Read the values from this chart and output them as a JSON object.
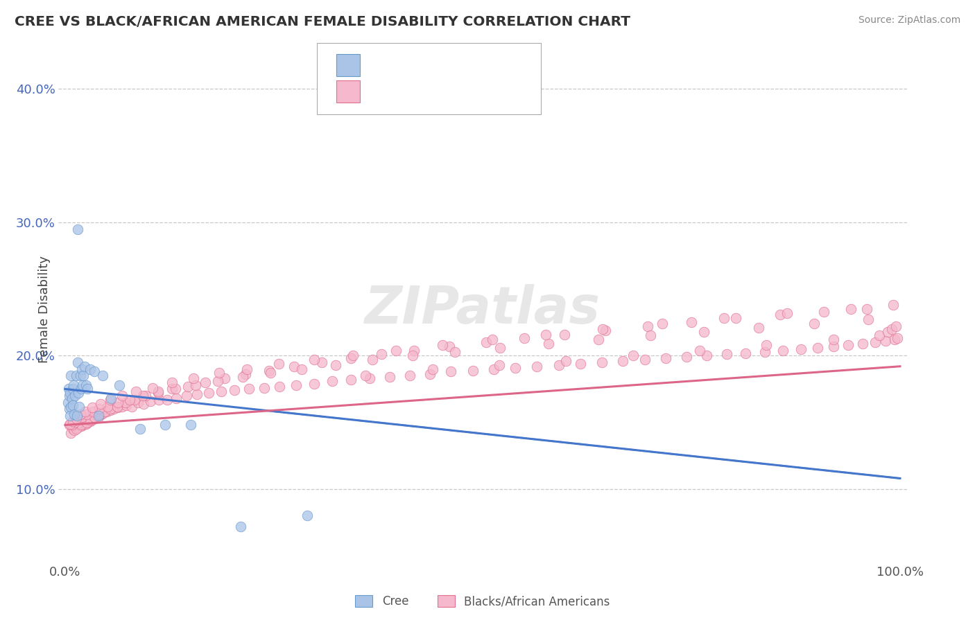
{
  "title": "CREE VS BLACK/AFRICAN AMERICAN FEMALE DISABILITY CORRELATION CHART",
  "source": "Source: ZipAtlas.com",
  "ylabel": "Female Disability",
  "watermark": "ZIPatlas",
  "cree_color": "#aac4e8",
  "cree_edge_color": "#6699cc",
  "black_color": "#f5b8cc",
  "black_edge_color": "#e07090",
  "cree_line_color": "#4477cc",
  "black_line_color": "#dd6688",
  "ytick_color": "#4466bb",
  "background_color": "#ffffff",
  "grid_color": "#bbbbbb",
  "legend_text_color": "#333333",
  "legend_num_color": "#4466bb",
  "xlim": [
    -0.008,
    1.008
  ],
  "ylim": [
    0.045,
    0.425
  ],
  "yticks": [
    0.1,
    0.2,
    0.3,
    0.4
  ],
  "yticklabels": [
    "10.0%",
    "20.0%",
    "30.0%",
    "40.0%"
  ],
  "cree_x": [
    0.003,
    0.004,
    0.005,
    0.005,
    0.006,
    0.006,
    0.007,
    0.007,
    0.008,
    0.009,
    0.009,
    0.01,
    0.011,
    0.012,
    0.013,
    0.014,
    0.015,
    0.016,
    0.017,
    0.018,
    0.019,
    0.02,
    0.021,
    0.022,
    0.023,
    0.025,
    0.027,
    0.03,
    0.035,
    0.04,
    0.045,
    0.055,
    0.065,
    0.09,
    0.12,
    0.15,
    0.21,
    0.29,
    0.015
  ],
  "cree_y": [
    0.165,
    0.175,
    0.16,
    0.17,
    0.155,
    0.172,
    0.162,
    0.185,
    0.168,
    0.163,
    0.175,
    0.178,
    0.156,
    0.17,
    0.185,
    0.155,
    0.195,
    0.172,
    0.162,
    0.185,
    0.175,
    0.19,
    0.178,
    0.185,
    0.192,
    0.178,
    0.175,
    0.19,
    0.188,
    0.155,
    0.185,
    0.168,
    0.178,
    0.145,
    0.148,
    0.148,
    0.072,
    0.08,
    0.295
  ],
  "black_x": [
    0.005,
    0.007,
    0.009,
    0.01,
    0.011,
    0.012,
    0.014,
    0.015,
    0.016,
    0.017,
    0.018,
    0.019,
    0.02,
    0.021,
    0.022,
    0.024,
    0.025,
    0.027,
    0.028,
    0.03,
    0.032,
    0.034,
    0.036,
    0.038,
    0.04,
    0.043,
    0.046,
    0.05,
    0.054,
    0.058,
    0.063,
    0.068,
    0.073,
    0.08,
    0.087,
    0.094,
    0.102,
    0.112,
    0.122,
    0.133,
    0.145,
    0.158,
    0.172,
    0.187,
    0.203,
    0.22,
    0.238,
    0.257,
    0.277,
    0.298,
    0.32,
    0.342,
    0.365,
    0.389,
    0.413,
    0.437,
    0.462,
    0.488,
    0.513,
    0.539,
    0.565,
    0.591,
    0.617,
    0.643,
    0.668,
    0.694,
    0.719,
    0.744,
    0.768,
    0.792,
    0.815,
    0.838,
    0.86,
    0.881,
    0.901,
    0.92,
    0.938,
    0.955,
    0.97,
    0.983,
    0.993,
    0.997,
    0.01,
    0.013,
    0.016,
    0.019,
    0.022,
    0.026,
    0.03,
    0.035,
    0.041,
    0.047,
    0.054,
    0.062,
    0.072,
    0.083,
    0.096,
    0.111,
    0.128,
    0.147,
    0.168,
    0.191,
    0.216,
    0.244,
    0.274,
    0.307,
    0.342,
    0.379,
    0.418,
    0.46,
    0.504,
    0.55,
    0.598,
    0.647,
    0.698,
    0.75,
    0.803,
    0.856,
    0.909,
    0.96,
    0.008,
    0.011,
    0.015,
    0.02,
    0.026,
    0.033,
    0.041,
    0.051,
    0.063,
    0.077,
    0.093,
    0.111,
    0.132,
    0.156,
    0.183,
    0.213,
    0.246,
    0.283,
    0.324,
    0.368,
    0.416,
    0.467,
    0.521,
    0.579,
    0.639,
    0.701,
    0.765,
    0.831,
    0.897,
    0.962,
    0.006,
    0.009,
    0.013,
    0.018,
    0.024,
    0.032,
    0.042,
    0.054,
    0.068,
    0.085,
    0.105,
    0.128,
    0.154,
    0.184,
    0.218,
    0.256,
    0.298,
    0.345,
    0.396,
    0.452,
    0.512,
    0.576,
    0.644,
    0.715,
    0.789,
    0.865,
    0.941,
    0.992,
    0.36,
    0.44,
    0.52,
    0.6,
    0.68,
    0.76,
    0.84,
    0.92,
    0.975,
    0.985,
    0.99,
    0.995
  ],
  "black_y": [
    0.148,
    0.142,
    0.145,
    0.148,
    0.144,
    0.15,
    0.147,
    0.146,
    0.152,
    0.148,
    0.15,
    0.147,
    0.149,
    0.152,
    0.148,
    0.151,
    0.149,
    0.15,
    0.153,
    0.151,
    0.152,
    0.154,
    0.153,
    0.155,
    0.154,
    0.156,
    0.157,
    0.158,
    0.159,
    0.16,
    0.161,
    0.162,
    0.163,
    0.162,
    0.165,
    0.164,
    0.166,
    0.167,
    0.167,
    0.168,
    0.17,
    0.171,
    0.172,
    0.173,
    0.174,
    0.175,
    0.176,
    0.177,
    0.178,
    0.179,
    0.181,
    0.182,
    0.183,
    0.184,
    0.185,
    0.186,
    0.188,
    0.189,
    0.19,
    0.191,
    0.192,
    0.193,
    0.194,
    0.195,
    0.196,
    0.197,
    0.198,
    0.199,
    0.2,
    0.201,
    0.202,
    0.203,
    0.204,
    0.205,
    0.206,
    0.207,
    0.208,
    0.209,
    0.21,
    0.211,
    0.212,
    0.213,
    0.148,
    0.145,
    0.15,
    0.148,
    0.152,
    0.15,
    0.152,
    0.154,
    0.156,
    0.158,
    0.16,
    0.162,
    0.165,
    0.167,
    0.17,
    0.172,
    0.175,
    0.177,
    0.18,
    0.183,
    0.186,
    0.189,
    0.192,
    0.195,
    0.198,
    0.201,
    0.204,
    0.207,
    0.21,
    0.213,
    0.216,
    0.219,
    0.222,
    0.225,
    0.228,
    0.231,
    0.233,
    0.235,
    0.148,
    0.15,
    0.152,
    0.154,
    0.156,
    0.158,
    0.16,
    0.162,
    0.165,
    0.167,
    0.17,
    0.173,
    0.175,
    0.178,
    0.181,
    0.184,
    0.187,
    0.19,
    0.193,
    0.197,
    0.2,
    0.203,
    0.206,
    0.209,
    0.212,
    0.215,
    0.218,
    0.221,
    0.224,
    0.227,
    0.149,
    0.151,
    0.153,
    0.156,
    0.158,
    0.161,
    0.164,
    0.167,
    0.17,
    0.173,
    0.176,
    0.18,
    0.183,
    0.187,
    0.19,
    0.194,
    0.197,
    0.2,
    0.204,
    0.208,
    0.212,
    0.216,
    0.22,
    0.224,
    0.228,
    0.232,
    0.235,
    0.238,
    0.185,
    0.19,
    0.193,
    0.196,
    0.2,
    0.204,
    0.208,
    0.212,
    0.215,
    0.218,
    0.22,
    0.222
  ],
  "cree_line_start_y": 0.175,
  "cree_line_end_y": 0.108,
  "black_line_start_y": 0.148,
  "black_line_end_y": 0.192,
  "scatter_size": 110,
  "scatter_alpha": 0.75
}
